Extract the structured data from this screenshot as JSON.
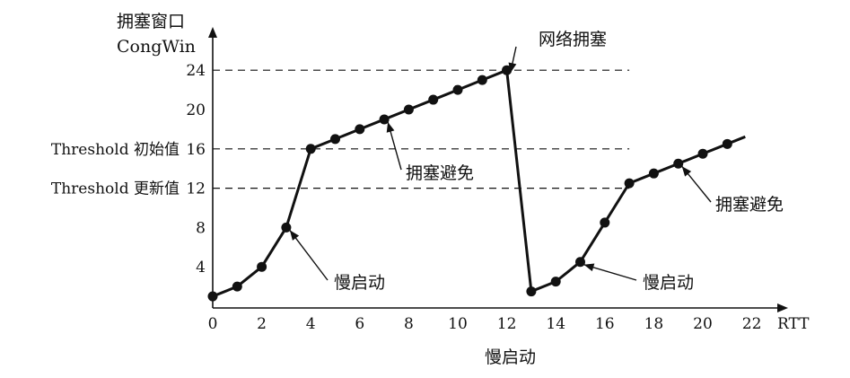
{
  "chart_data": {
    "type": "line",
    "ylabel_line1": "拥塞窗口",
    "ylabel_line2": "CongWin",
    "xlabel": "RTT",
    "bottom_label": "慢启动",
    "x_ticks": [
      0,
      2,
      4,
      6,
      8,
      10,
      12,
      14,
      16,
      18,
      20,
      22
    ],
    "y_ticks": [
      4,
      8,
      12,
      16,
      20,
      24
    ],
    "xlim": [
      0,
      24
    ],
    "ylim": [
      0,
      27
    ],
    "x": [
      0,
      1,
      2,
      3,
      4,
      5,
      6,
      7,
      8,
      9,
      10,
      11,
      12,
      13,
      14,
      15,
      16,
      17,
      18,
      19,
      20,
      21
    ],
    "y": [
      1,
      2,
      4,
      8,
      16,
      17,
      18,
      19,
      20,
      21,
      22,
      23,
      24,
      1.5,
      2.5,
      4.5,
      8.5,
      12.5,
      13.5,
      14.5,
      15.5,
      16.5
    ],
    "reference_lines": [
      {
        "y": 24,
        "x_end": 17
      },
      {
        "y": 16,
        "x_end": 17
      },
      {
        "y": 12,
        "x_end": 17
      }
    ],
    "threshold_labels": [
      {
        "text": "Threshold 初始值",
        "y": 16
      },
      {
        "text": "Threshold 更新值",
        "y": 12
      }
    ],
    "annotations": [
      {
        "text": "网络拥塞",
        "ax": 12,
        "ay": 24
      },
      {
        "text": "拥塞避免",
        "ax": 7,
        "ay": 19
      },
      {
        "text": "慢启动",
        "ax": 3,
        "ay": 8
      },
      {
        "text": "慢启动",
        "ax": 15,
        "ay": 4.5
      },
      {
        "text": "拥塞避免",
        "ax": 19,
        "ay": 14.5
      }
    ]
  }
}
